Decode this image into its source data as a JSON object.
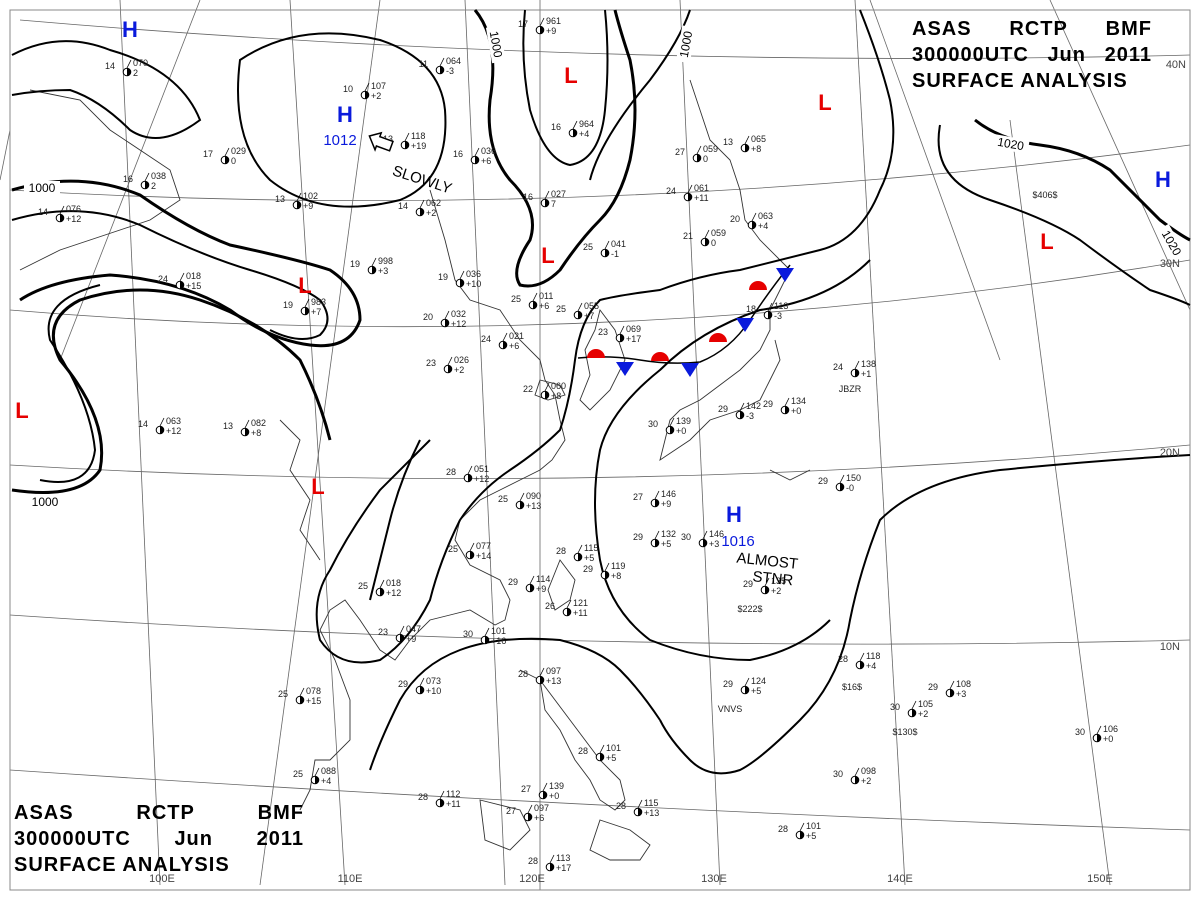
{
  "header": {
    "line1": [
      "ASAS",
      "RCTP",
      "BMF"
    ],
    "line2": [
      "300000UTC",
      "Jun",
      "2011"
    ],
    "line3": "SURFACE ANALYSIS"
  },
  "colors": {
    "high": "#0a1adc",
    "low": "#e60000",
    "isobar": "#000000",
    "grid": "#555555",
    "coast": "#333333"
  },
  "latitude_labels": [
    "30N",
    "20N",
    "10N"
  ],
  "longitude_labels": [
    "100E",
    "110E",
    "120E",
    "130E",
    "140E",
    "150E"
  ],
  "corner_label": "40N",
  "isobar_labels": [
    "1000",
    "1000",
    "1000",
    "1000",
    "1020",
    "1020"
  ],
  "pressure_centers": [
    {
      "type": "H",
      "value": "1012",
      "motion": "SLOWLY"
    },
    {
      "type": "H",
      "value": "1016",
      "motion": "ALMOST STNR"
    },
    {
      "type": "H",
      "value": ""
    },
    {
      "type": "H",
      "value": ""
    },
    {
      "type": "L",
      "value": ""
    },
    {
      "type": "L",
      "value": ""
    },
    {
      "type": "L",
      "value": ""
    },
    {
      "type": "L",
      "value": ""
    },
    {
      "type": "L",
      "value": ""
    },
    {
      "type": "L",
      "value": ""
    },
    {
      "type": "L",
      "value": ""
    }
  ],
  "motion_labels": {
    "slowly": "SLOWLY",
    "almost": "ALMOST",
    "stnr": "STNR"
  },
  "front": {
    "type": "stationary"
  },
  "station_reports": [
    {
      "t": "17",
      "p": "961",
      "tend": "+9"
    },
    {
      "t": "11",
      "p": "064",
      "tend": "-3"
    },
    {
      "t": "10",
      "p": "107",
      "tend": "+2"
    },
    {
      "t": "13",
      "p": "118",
      "tend": "+19"
    },
    {
      "t": "16",
      "p": "964",
      "tend": "+4"
    },
    {
      "t": "27",
      "p": "059",
      "tend": "0"
    },
    {
      "t": "13",
      "p": "065",
      "tend": "+8"
    },
    {
      "t": "24",
      "p": "061",
      "tend": "+11"
    },
    {
      "t": "21",
      "p": "059",
      "tend": "0"
    },
    {
      "t": "20",
      "p": "063",
      "tend": "+4"
    },
    {
      "t": "25",
      "p": "041",
      "tend": "-1"
    },
    {
      "t": "16",
      "p": "027",
      "tend": "7"
    },
    {
      "t": "16",
      "p": "036",
      "tend": "+6"
    },
    {
      "t": "17",
      "p": "029",
      "tend": "0"
    },
    {
      "t": "16",
      "p": "038",
      "tend": "2"
    },
    {
      "t": "13",
      "p": "102",
      "tend": "+9"
    },
    {
      "t": "14",
      "p": "062",
      "tend": "+2"
    },
    {
      "t": "19",
      "p": "998",
      "tend": "+3"
    },
    {
      "t": "19",
      "p": "036",
      "tend": "+10"
    },
    {
      "t": "19",
      "p": "983",
      "tend": "+7"
    },
    {
      "t": "20",
      "p": "032",
      "tend": "+12"
    },
    {
      "t": "23",
      "p": "026",
      "tend": "+2"
    },
    {
      "t": "24",
      "p": "021",
      "tend": "+6"
    },
    {
      "t": "25",
      "p": "011",
      "tend": "+6"
    },
    {
      "t": "25",
      "p": "055",
      "tend": "+7"
    },
    {
      "t": "23",
      "p": "069",
      "tend": "+17"
    },
    {
      "t": "22",
      "p": "060",
      "tend": "+8"
    },
    {
      "t": "18",
      "p": "113",
      "tend": "-3"
    },
    {
      "t": "24",
      "p": "138",
      "tend": "+1"
    },
    {
      "t": "29",
      "p": "134",
      "tend": "+0"
    },
    {
      "t": "30",
      "p": "139",
      "tend": "+0"
    },
    {
      "t": "29",
      "p": "150",
      "tend": "-0"
    },
    {
      "t": "29",
      "p": "142",
      "tend": "-3"
    },
    {
      "t": "28",
      "p": "051",
      "tend": "+12"
    },
    {
      "t": "25",
      "p": "090",
      "tend": "+13"
    },
    {
      "t": "27",
      "p": "146",
      "tend": "+9"
    },
    {
      "t": "29",
      "p": "132",
      "tend": "+5"
    },
    {
      "t": "30",
      "p": "146",
      "tend": "+3"
    },
    {
      "t": "25",
      "p": "077",
      "tend": "+14"
    },
    {
      "t": "28",
      "p": "115",
      "tend": "+5"
    },
    {
      "t": "29",
      "p": "114",
      "tend": "+9"
    },
    {
      "t": "29",
      "p": "119",
      "tend": "+8"
    },
    {
      "t": "26",
      "p": "121",
      "tend": "+11"
    },
    {
      "t": "25",
      "p": "018",
      "tend": "+12"
    },
    {
      "t": "23",
      "p": "047",
      "tend": "+9"
    },
    {
      "t": "30",
      "p": "101",
      "tend": "+16"
    },
    {
      "t": "29",
      "p": "135",
      "tend": "+2"
    },
    {
      "t": "25",
      "p": "078",
      "tend": "+15"
    },
    {
      "t": "29",
      "p": "073",
      "tend": "+10"
    },
    {
      "t": "28",
      "p": "097",
      "tend": "+13"
    },
    {
      "t": "29",
      "p": "124",
      "tend": "+5"
    },
    {
      "t": "28",
      "p": "118",
      "tend": "+4"
    },
    {
      "t": "29",
      "p": "108",
      "tend": "+3"
    },
    {
      "t": "30",
      "p": "105",
      "tend": "+2"
    },
    {
      "t": "30",
      "p": "106",
      "tend": "+0"
    },
    {
      "t": "30",
      "p": "098",
      "tend": "+2"
    },
    {
      "t": "28",
      "p": "101",
      "tend": "+5"
    },
    {
      "t": "28",
      "p": "112",
      "tend": "+11"
    },
    {
      "t": "27",
      "p": "097",
      "tend": "+6"
    },
    {
      "t": "27",
      "p": "139",
      "tend": "+0"
    },
    {
      "t": "28",
      "p": "101",
      "tend": "+5"
    },
    {
      "t": "28",
      "p": "115",
      "tend": "+13"
    },
    {
      "t": "28",
      "p": "113",
      "tend": "+17"
    },
    {
      "t": "25",
      "p": "088",
      "tend": "+4"
    },
    {
      "t": "14",
      "p": "070",
      "tend": "2"
    },
    {
      "t": "14",
      "p": "063",
      "tend": "+12"
    },
    {
      "t": "14",
      "p": "076",
      "tend": "+12"
    },
    {
      "t": "13",
      "p": "082",
      "tend": "+8"
    },
    {
      "t": "24",
      "p": "018",
      "tend": "+15"
    }
  ],
  "station_tags": [
    "$406$",
    "JBZR",
    "$222$",
    "VNVS",
    "$16$",
    "$130$"
  ]
}
